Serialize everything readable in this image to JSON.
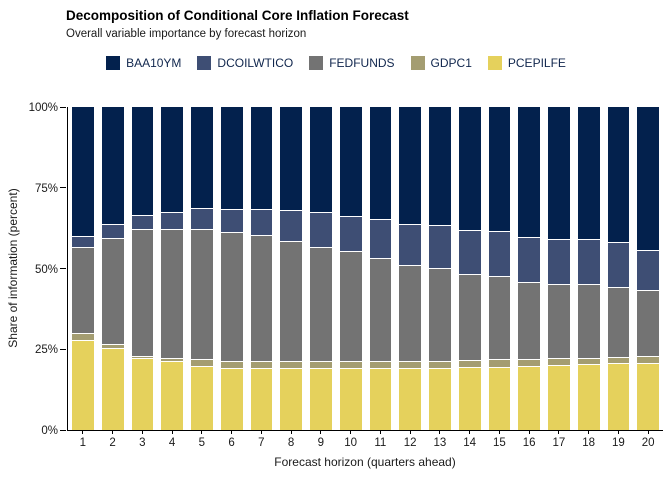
{
  "header": {
    "title": "Decomposition of Conditional Core Inflation Forecast",
    "subtitle": "Overall variable importance by forecast horizon"
  },
  "axes": {
    "xlabel": "Forecast horizon (quarters ahead)",
    "ylabel": "Share of information (percent)",
    "ytick_labels": [
      "0%",
      "25%",
      "50%",
      "75%",
      "100%"
    ],
    "ytick_positions": [
      0,
      25,
      50,
      75,
      100
    ]
  },
  "chart_data": {
    "type": "bar",
    "stacked": true,
    "orientation": "vertical",
    "title": "Decomposition of Conditional Core Inflation Forecast",
    "subtitle": "Overall variable importance by forecast horizon",
    "xlabel": "Forecast horizon (quarters ahead)",
    "ylabel": "Share of information (percent)",
    "ylim": [
      0,
      100
    ],
    "yunit": "percent",
    "grid": false,
    "legend_position": "top-center",
    "categories": [
      "1",
      "2",
      "3",
      "4",
      "5",
      "6",
      "7",
      "8",
      "9",
      "10",
      "11",
      "12",
      "13",
      "14",
      "15",
      "16",
      "17",
      "18",
      "19",
      "20"
    ],
    "stack_order_bottom_to_top": [
      "PCEPILFE",
      "GDPC1",
      "FEDFUNDS",
      "DCOILWTICO",
      "BAA10YM"
    ],
    "series": [
      {
        "name": "BAA10YM",
        "color": "#03214d",
        "values": [
          40.4,
          36.8,
          33.7,
          32.8,
          31.6,
          31.9,
          31.9,
          32.4,
          32.9,
          34.3,
          35.2,
          36.7,
          37.1,
          38.4,
          38.8,
          40.9,
          41.4,
          41.4,
          42.3,
          44.8
        ]
      },
      {
        "name": "DCOILWTICO",
        "color": "#3e4e74",
        "values": [
          3.1,
          3.8,
          4.2,
          5.0,
          6.2,
          6.9,
          7.9,
          9.3,
          10.6,
          10.5,
          11.8,
          12.4,
          12.9,
          13.6,
          14.0,
          13.6,
          13.9,
          13.9,
          13.8,
          12.3
        ]
      },
      {
        "name": "FEDFUNDS",
        "color": "#737373",
        "values": [
          26.7,
          33.2,
          39.4,
          40.4,
          40.6,
          40.1,
          39.2,
          37.4,
          35.6,
          34.3,
          32.1,
          30.0,
          29.0,
          26.8,
          25.7,
          23.9,
          22.8,
          22.6,
          21.5,
          20.4
        ]
      },
      {
        "name": "GDPC1",
        "color": "#a49d71",
        "values": [
          1.8,
          0.8,
          0.4,
          0.5,
          1.9,
          2.1,
          2.0,
          1.7,
          1.9,
          1.9,
          1.9,
          1.9,
          1.8,
          1.9,
          2.0,
          1.8,
          1.9,
          1.8,
          1.8,
          1.7
        ]
      },
      {
        "name": "PCEPILFE",
        "color": "#e5d15c",
        "values": [
          28.0,
          25.4,
          22.3,
          21.3,
          19.7,
          19.0,
          19.0,
          19.2,
          19.0,
          19.0,
          19.0,
          19.0,
          19.2,
          19.3,
          19.5,
          19.8,
          20.0,
          20.3,
          20.6,
          20.8
        ]
      }
    ]
  }
}
